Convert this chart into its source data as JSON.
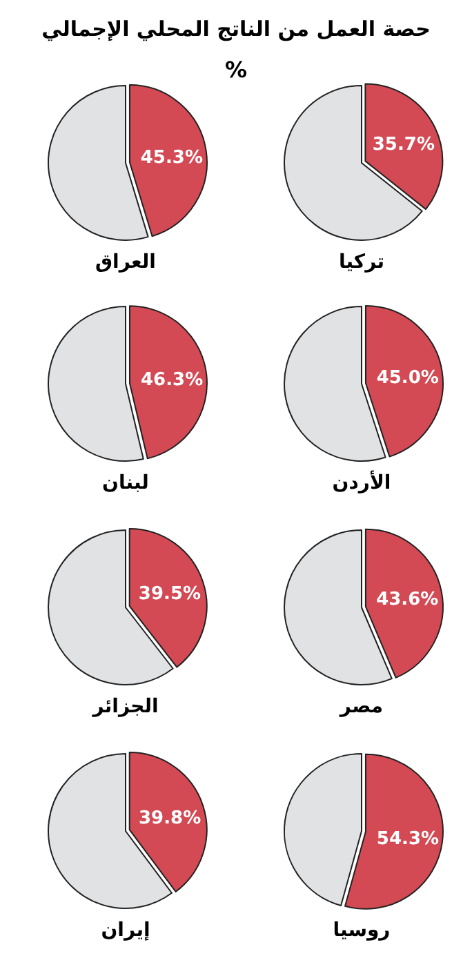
{
  "chart_data": [
    {
      "type": "pie",
      "title": "حصة العمل من الناتج المحلي الإجمالي",
      "subtitle": "%",
      "xlabel": "تركيا",
      "categories": [
        null,
        null
      ],
      "values": [
        35.7,
        64.3
      ],
      "colors": [
        "#d34a55",
        "#e1e2e4"
      ],
      "value_labels": [
        "35.7%",
        null
      ]
    },
    {
      "type": "pie",
      "xlabel": "العراق",
      "categories": [
        null,
        null
      ],
      "values": [
        45.3,
        54.7
      ],
      "colors": [
        "#d34a55",
        "#e1e2e4"
      ],
      "value_labels": [
        "45.3%",
        null
      ]
    },
    {
      "type": "pie",
      "xlabel": "الأردن",
      "categories": [
        null,
        null
      ],
      "values": [
        45.0,
        55.0
      ],
      "colors": [
        "#d34a55",
        "#e1e2e4"
      ],
      "value_labels": [
        "45.0%",
        null
      ]
    },
    {
      "type": "pie",
      "xlabel": "لبنان",
      "categories": [
        null,
        null
      ],
      "values": [
        46.3,
        53.7
      ],
      "colors": [
        "#d34a55",
        "#e1e2e4"
      ],
      "value_labels": [
        "46.3%",
        null
      ]
    },
    {
      "type": "pie",
      "xlabel": "مصر",
      "categories": [
        null,
        null
      ],
      "values": [
        43.6,
        56.4
      ],
      "colors": [
        "#d34a55",
        "#e1e2e4"
      ],
      "value_labels": [
        "43.6%",
        null
      ]
    },
    {
      "type": "pie",
      "xlabel": "الجزائر",
      "categories": [
        null,
        null
      ],
      "values": [
        39.5,
        60.5
      ],
      "colors": [
        "#d34a55",
        "#e1e2e4"
      ],
      "value_labels": [
        "39.5%",
        null
      ]
    },
    {
      "type": "pie",
      "xlabel": "روسيا",
      "categories": [
        null,
        null
      ],
      "values": [
        54.3,
        45.7
      ],
      "colors": [
        "#d34a55",
        "#e1e2e4"
      ],
      "value_labels": [
        "54.3%",
        null
      ]
    },
    {
      "type": "pie",
      "xlabel": "إيران",
      "categories": [
        null,
        null
      ],
      "values": [
        39.8,
        60.2
      ],
      "colors": [
        "#d34a55",
        "#e1e2e4"
      ],
      "value_labels": [
        "39.8%",
        null
      ]
    }
  ]
}
